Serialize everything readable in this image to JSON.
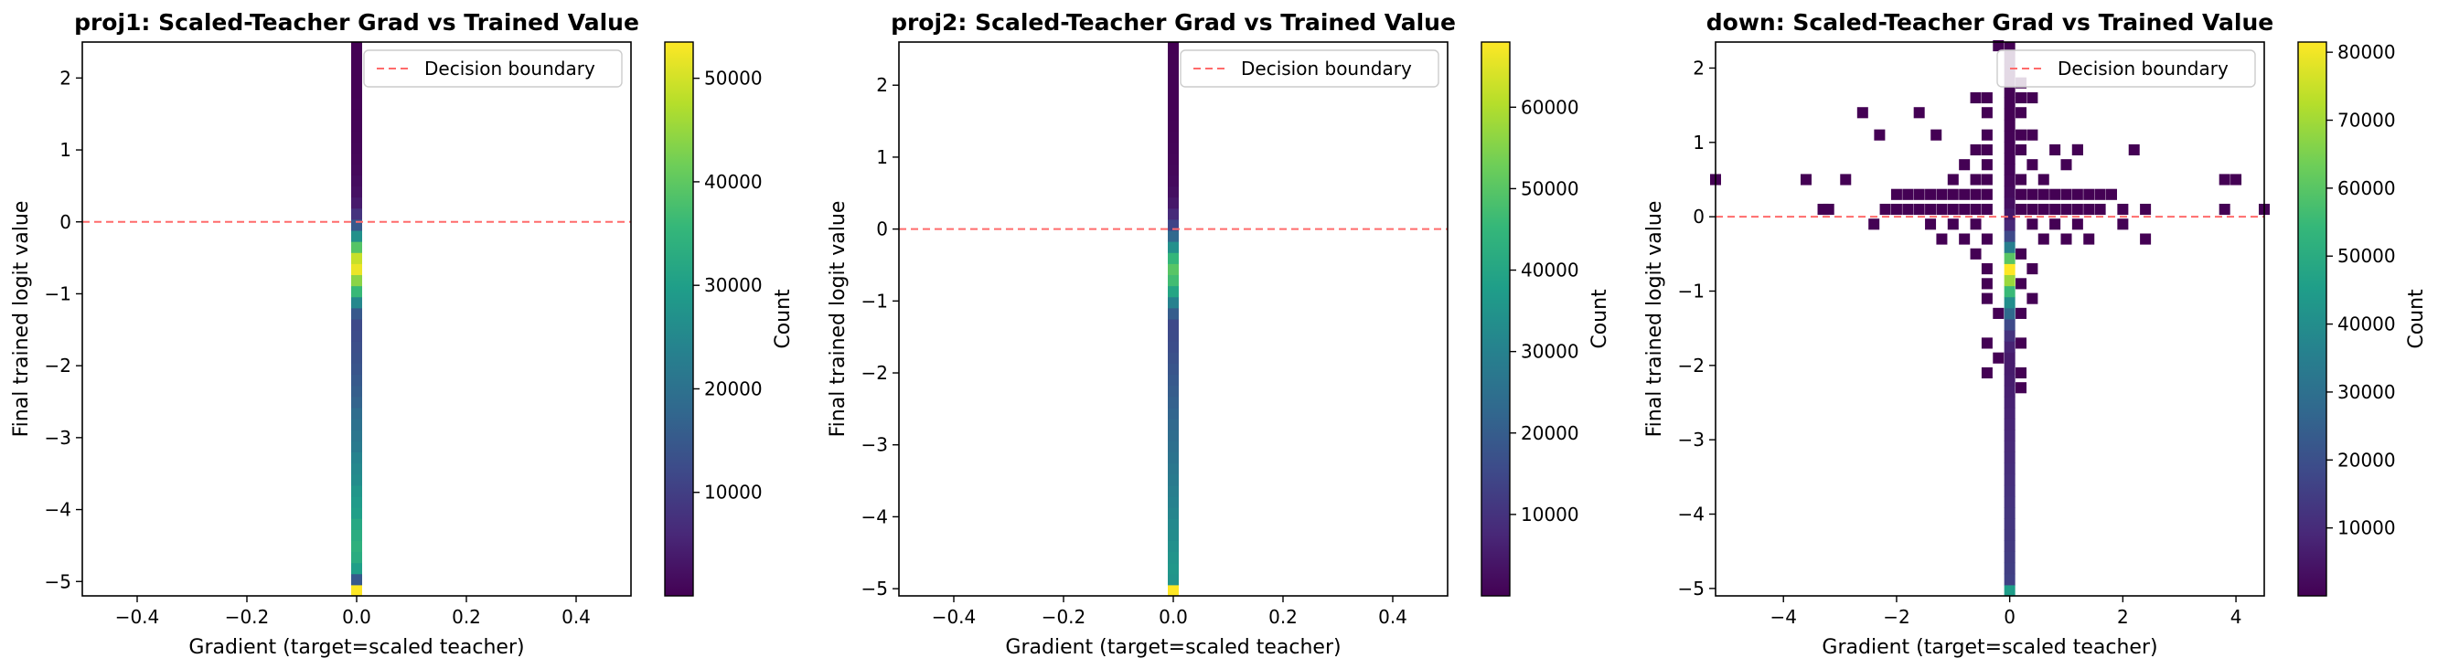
{
  "colormap": {
    "name": "viridis",
    "stops": [
      "#440154",
      "#482878",
      "#3e4989",
      "#31688e",
      "#26828e",
      "#1f9e89",
      "#35b779",
      "#6ece58",
      "#b5de2b",
      "#fde725"
    ]
  },
  "boundary_color": "#ff6b6b",
  "chart_data": [
    {
      "type": "heatmap",
      "title": "proj1: Scaled-Teacher Grad vs Trained Value",
      "xlabel": "Gradient (target=scaled teacher)",
      "ylabel": "Final trained logit value",
      "xlim": [
        -0.5,
        0.5
      ],
      "ylim": [
        -5.2,
        2.5
      ],
      "xticks": [
        -0.4,
        -0.2,
        0.0,
        0.2,
        0.4
      ],
      "xtick_labels": [
        "−0.4",
        "−0.2",
        "0.0",
        "0.2",
        "0.4"
      ],
      "yticks": [
        -5,
        -4,
        -3,
        -2,
        -1,
        0,
        1,
        2
      ],
      "ytick_labels": [
        "−5",
        "−4",
        "−3",
        "−2",
        "−1",
        "0",
        "1",
        "2"
      ],
      "legend": {
        "label": "Decision boundary",
        "location": "upper right"
      },
      "colorbar": {
        "label": "Count",
        "min": 0,
        "max": 53500,
        "ticks": [
          10000,
          20000,
          30000,
          40000,
          50000
        ],
        "tick_labels": [
          "10000",
          "20000",
          "30000",
          "40000",
          "50000"
        ]
      },
      "hline_y": 0,
      "bin_width_x": 0.02,
      "column_x": [
        0.0
      ],
      "bins_y": {
        "start": -5.2,
        "width": 0.154
      },
      "columns": [
        [
          53500,
          15000,
          30000,
          33000,
          34000,
          33000,
          32000,
          30000,
          29000,
          28000,
          26000,
          25000,
          24000,
          22000,
          21000,
          20000,
          19000,
          17000,
          16000,
          15000,
          14000,
          13500,
          13000,
          12500,
          12000,
          15000,
          25000,
          36000,
          44000,
          52000,
          49000,
          39000,
          27000,
          15000,
          8000,
          4000,
          2500,
          1800,
          1200,
          900,
          700,
          550,
          450,
          350,
          280,
          220,
          180,
          140,
          110,
          90
        ]
      ]
    },
    {
      "type": "heatmap",
      "title": "proj2: Scaled-Teacher Grad vs Trained Value",
      "xlabel": "Gradient (target=scaled teacher)",
      "ylabel": "Final trained logit value",
      "xlim": [
        -0.5,
        0.5
      ],
      "ylim": [
        -5.1,
        2.6
      ],
      "xticks": [
        -0.4,
        -0.2,
        0.0,
        0.2,
        0.4
      ],
      "xtick_labels": [
        "−0.4",
        "−0.2",
        "0.0",
        "0.2",
        "0.4"
      ],
      "yticks": [
        -5,
        -4,
        -3,
        -2,
        -1,
        0,
        1,
        2
      ],
      "ytick_labels": [
        "−5",
        "−4",
        "−3",
        "−2",
        "−1",
        "0",
        "1",
        "2"
      ],
      "legend": {
        "label": "Decision boundary",
        "location": "upper right"
      },
      "colorbar": {
        "label": "Count",
        "min": 0,
        "max": 68000,
        "ticks": [
          10000,
          20000,
          30000,
          40000,
          50000,
          60000
        ],
        "tick_labels": [
          "10000",
          "20000",
          "30000",
          "40000",
          "50000",
          "60000"
        ]
      },
      "hline_y": 0,
      "bin_width_x": 0.02,
      "column_x": [
        0.0
      ],
      "bins_y": {
        "start": -5.1,
        "width": 0.154
      },
      "columns": [
        [
          68000,
          35000,
          36000,
          35000,
          34000,
          33000,
          32000,
          31000,
          30000,
          29000,
          28000,
          27000,
          26000,
          25000,
          24000,
          23000,
          22000,
          21000,
          20000,
          19000,
          18000,
          17000,
          16000,
          15500,
          15000,
          20000,
          30000,
          40000,
          47000,
          50000,
          45000,
          34000,
          23000,
          14000,
          8000,
          4500,
          2800,
          1800,
          1300,
          1000,
          750,
          580,
          450,
          350,
          280,
          220,
          170,
          130,
          100,
          80
        ]
      ]
    },
    {
      "type": "heatmap",
      "title": "down: Scaled-Teacher Grad vs Trained Value",
      "xlabel": "Gradient (target=scaled teacher)",
      "ylabel": "Final trained logit value",
      "xlim": [
        -5.2,
        4.5
      ],
      "ylim": [
        -5.1,
        2.35
      ],
      "xticks": [
        -4,
        -2,
        0,
        2,
        4
      ],
      "xtick_labels": [
        "−4",
        "−2",
        "0",
        "2",
        "4"
      ],
      "yticks": [
        -5,
        -4,
        -3,
        -2,
        -1,
        0,
        1,
        2
      ],
      "ytick_labels": [
        "−5",
        "−4",
        "−3",
        "−2",
        "−1",
        "0",
        "1",
        "2"
      ],
      "legend": {
        "label": "Decision boundary",
        "location": "upper right"
      },
      "colorbar": {
        "label": "Count",
        "min": 0,
        "max": 81500,
        "ticks": [
          10000,
          20000,
          30000,
          40000,
          50000,
          60000,
          70000,
          80000
        ],
        "tick_labels": [
          "10000",
          "20000",
          "30000",
          "40000",
          "50000",
          "60000",
          "70000",
          "80000"
        ]
      },
      "hline_y": 0,
      "bin_width_x": 0.194,
      "column_x": [
        -0.194,
        0.0,
        0.194
      ],
      "bins_y": {
        "start": -5.1,
        "width": 0.149
      },
      "columns": [
        [
          0,
          0,
          0,
          0,
          0,
          0,
          0,
          0,
          0,
          0,
          0,
          0,
          0,
          0,
          0,
          0,
          0,
          0,
          0,
          0,
          0,
          0,
          0,
          0,
          0,
          0,
          0,
          0,
          0,
          0,
          0,
          0,
          0,
          0,
          0,
          0,
          0,
          0,
          0,
          0,
          0,
          0,
          0,
          0,
          0,
          0,
          0,
          0,
          0,
          0
        ],
        [
          45000,
          16000,
          15000,
          14500,
          14000,
          13500,
          13000,
          12500,
          12000,
          11500,
          11000,
          10500,
          10000,
          9500,
          9000,
          8500,
          8000,
          7500,
          7000,
          6500,
          6000,
          6000,
          8000,
          12000,
          18000,
          28000,
          40000,
          55000,
          69000,
          81500,
          60000,
          35000,
          18000,
          9000,
          5000,
          3000,
          2000,
          1500,
          1000,
          800,
          600,
          450,
          350,
          280,
          200,
          150,
          100,
          70,
          40,
          20
        ],
        [
          0,
          0,
          0,
          0,
          0,
          0,
          0,
          0,
          0,
          0,
          0,
          0,
          0,
          0,
          0,
          0,
          0,
          0,
          0,
          0,
          0,
          0,
          0,
          0,
          0,
          0,
          0,
          0,
          0,
          0,
          0,
          0,
          0,
          0,
          0,
          0,
          0,
          0,
          0,
          0,
          0,
          0,
          0,
          0,
          0,
          0,
          0,
          0,
          0,
          0
        ]
      ]
    }
  ]
}
